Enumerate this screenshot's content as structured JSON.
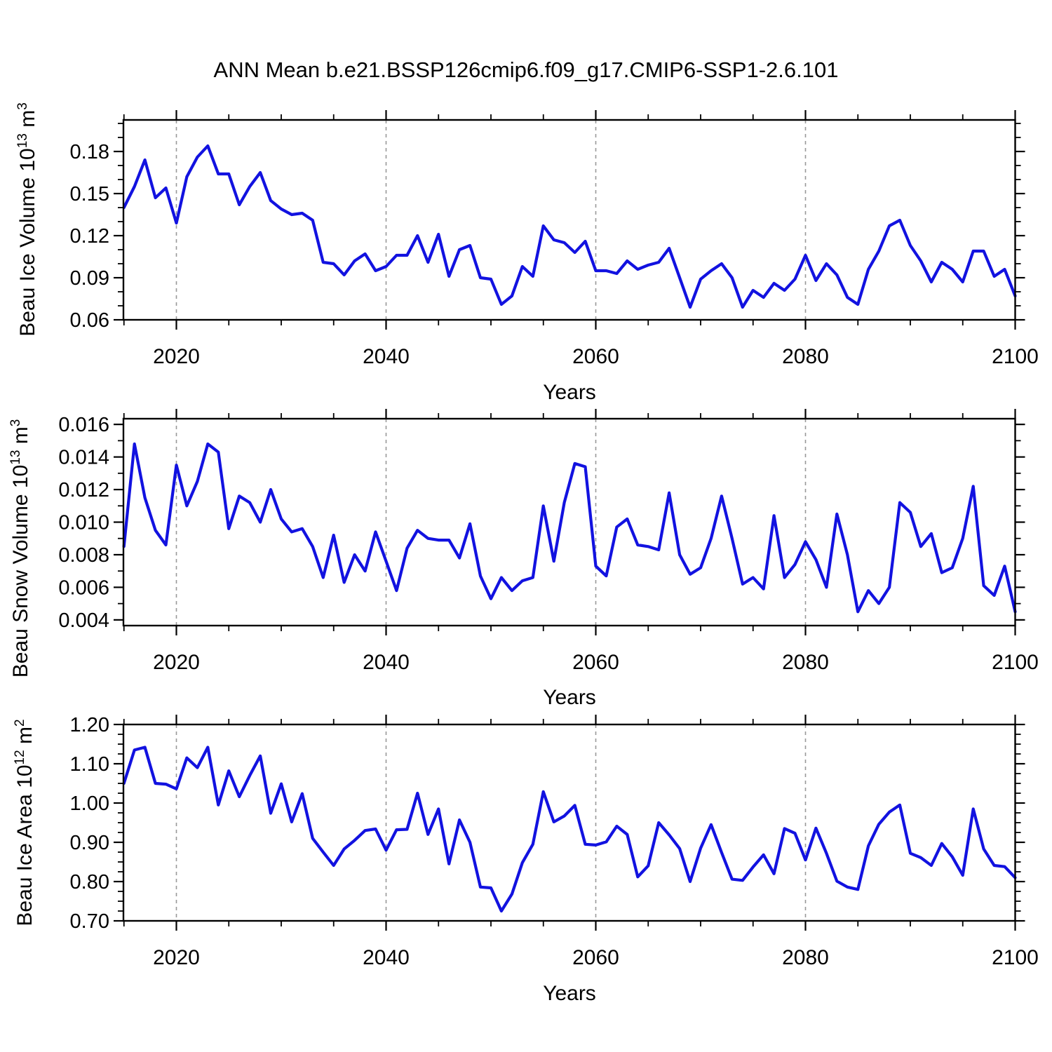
{
  "page": {
    "title": "ANN Mean b.e21.BSSP126cmip6.f09_g17.CMIP6-SSP1-2.6.101",
    "background": "#ffffff"
  },
  "style": {
    "line_color": "#1212E0",
    "axis_color": "#000000",
    "grid_color": "#999999",
    "text_color": "#000000"
  },
  "chart_data": [
    {
      "type": "line",
      "ylabel_text": "Beau Ice Volume 10^13 m^3",
      "ylabel_parts": [
        {
          "t": "Beau Ice Volume 10"
        },
        {
          "t": "13",
          "sup": true
        },
        {
          "t": " m"
        },
        {
          "t": "3",
          "sup": true
        }
      ],
      "xlabel": "Years",
      "x_start": 2015,
      "x_end": 2100,
      "x_step": 1,
      "xlim": [
        2014.95,
        2100
      ],
      "ylim": [
        0.06,
        0.2025
      ],
      "xticks": {
        "major": [
          2020,
          2040,
          2060,
          2080,
          2100
        ],
        "labels": [
          "2020",
          "2040",
          "2060",
          "2080",
          "2100"
        ],
        "minor_step": 5
      },
      "yticks": {
        "major": [
          0.06,
          0.09,
          0.12,
          0.15,
          0.18
        ],
        "labels": [
          "0.06",
          "0.09",
          "0.12",
          "0.15",
          "0.18"
        ],
        "minor_step": 0.01
      },
      "grid_years": [
        2020,
        2040,
        2060,
        2080
      ],
      "grid_on": "vertical-dashed",
      "legend": "none",
      "values": [
        0.14,
        0.155,
        0.174,
        0.147,
        0.154,
        0.129,
        0.162,
        0.176,
        0.184,
        0.164,
        0.164,
        0.142,
        0.155,
        0.165,
        0.145,
        0.139,
        0.135,
        0.136,
        0.131,
        0.101,
        0.1,
        0.092,
        0.102,
        0.107,
        0.095,
        0.098,
        0.106,
        0.106,
        0.12,
        0.101,
        0.121,
        0.091,
        0.11,
        0.113,
        0.09,
        0.089,
        0.071,
        0.077,
        0.098,
        0.091,
        0.127,
        0.117,
        0.115,
        0.108,
        0.116,
        0.095,
        0.095,
        0.093,
        0.102,
        0.096,
        0.099,
        0.101,
        0.111,
        0.09,
        0.069,
        0.089,
        0.095,
        0.1,
        0.09,
        0.069,
        0.081,
        0.076,
        0.086,
        0.081,
        0.089,
        0.106,
        0.088,
        0.1,
        0.092,
        0.076,
        0.071,
        0.096,
        0.109,
        0.127,
        0.131,
        0.113,
        0.102,
        0.087,
        0.101,
        0.096,
        0.087,
        0.109,
        0.109,
        0.091,
        0.096,
        0.077
      ]
    },
    {
      "type": "line",
      "ylabel_text": "Beau Snow Volume 10^13 m^3",
      "ylabel_parts": [
        {
          "t": "Beau Snow Volume 10"
        },
        {
          "t": "13",
          "sup": true
        },
        {
          "t": " m"
        },
        {
          "t": "3",
          "sup": true
        }
      ],
      "xlabel": "Years",
      "x_start": 2015,
      "x_end": 2100,
      "x_step": 1,
      "xlim": [
        2014.95,
        2100
      ],
      "ylim": [
        0.00365,
        0.01635
      ],
      "xticks": {
        "major": [
          2020,
          2040,
          2060,
          2080,
          2100
        ],
        "labels": [
          "2020",
          "2040",
          "2060",
          "2080",
          "2100"
        ],
        "minor_step": 5
      },
      "yticks": {
        "major": [
          0.004,
          0.006,
          0.008,
          0.01,
          0.012,
          0.014,
          0.016
        ],
        "labels": [
          "0.004",
          "0.006",
          "0.008",
          "0.010",
          "0.012",
          "0.014",
          "0.016"
        ],
        "minor_step": 0.001
      },
      "grid_years": [
        2020,
        2040,
        2060,
        2080
      ],
      "grid_on": "vertical-dashed",
      "legend": "none",
      "values": [
        0.0085,
        0.0148,
        0.0115,
        0.0095,
        0.0086,
        0.0135,
        0.011,
        0.0125,
        0.0148,
        0.0143,
        0.0096,
        0.0116,
        0.0112,
        0.01,
        0.012,
        0.0102,
        0.0094,
        0.0096,
        0.0085,
        0.0066,
        0.0092,
        0.0063,
        0.008,
        0.007,
        0.0094,
        0.0076,
        0.0058,
        0.0084,
        0.0095,
        0.009,
        0.0089,
        0.0089,
        0.0078,
        0.0099,
        0.0067,
        0.0053,
        0.0066,
        0.0058,
        0.0064,
        0.0066,
        0.011,
        0.0076,
        0.0112,
        0.0136,
        0.0134,
        0.0073,
        0.0067,
        0.0097,
        0.0102,
        0.0086,
        0.0085,
        0.0083,
        0.0118,
        0.008,
        0.0068,
        0.0072,
        0.009,
        0.0116,
        0.009,
        0.0062,
        0.0066,
        0.0059,
        0.0104,
        0.0066,
        0.0074,
        0.0088,
        0.0077,
        0.006,
        0.0105,
        0.008,
        0.0045,
        0.0058,
        0.005,
        0.006,
        0.0112,
        0.0106,
        0.0085,
        0.0093,
        0.0069,
        0.0072,
        0.009,
        0.0122,
        0.0061,
        0.0055,
        0.0073,
        0.0045
      ]
    },
    {
      "type": "line",
      "ylabel_text": "Beau Ice Area 10^12 m^2",
      "ylabel_parts": [
        {
          "t": "Beau Ice Area 10"
        },
        {
          "t": "12",
          "sup": true
        },
        {
          "t": " m"
        },
        {
          "t": "2",
          "sup": true
        }
      ],
      "xlabel": "Years",
      "x_start": 2015,
      "x_end": 2100,
      "x_step": 1,
      "xlim": [
        2014.95,
        2100
      ],
      "ylim": [
        0.7,
        1.2
      ],
      "xticks": {
        "major": [
          2020,
          2040,
          2060,
          2080,
          2100
        ],
        "labels": [
          "2020",
          "2040",
          "2060",
          "2080",
          "2100"
        ],
        "minor_step": 5
      },
      "yticks": {
        "major": [
          0.7,
          0.8,
          0.9,
          1.0,
          1.1,
          1.2
        ],
        "labels": [
          "0.70",
          "0.80",
          "0.90",
          "1.00",
          "1.10",
          "1.20"
        ],
        "minor_step": 0.025
      },
      "grid_years": [
        2020,
        2040,
        2060,
        2080
      ],
      "grid_on": "vertical-dashed",
      "legend": "none",
      "values": [
        1.05,
        1.135,
        1.142,
        1.05,
        1.048,
        1.036,
        1.115,
        1.09,
        1.142,
        0.995,
        1.082,
        1.016,
        1.07,
        1.12,
        0.974,
        1.049,
        0.952,
        1.024,
        0.91,
        0.875,
        0.841,
        0.883,
        0.905,
        0.93,
        0.934,
        0.88,
        0.932,
        0.933,
        1.025,
        0.92,
        0.985,
        0.845,
        0.957,
        0.9,
        0.786,
        0.784,
        0.725,
        0.768,
        0.848,
        0.895,
        1.029,
        0.952,
        0.967,
        0.994,
        0.895,
        0.893,
        0.901,
        0.941,
        0.92,
        0.812,
        0.84,
        0.95,
        0.919,
        0.884,
        0.8,
        0.885,
        0.945,
        0.874,
        0.806,
        0.803,
        0.837,
        0.868,
        0.82,
        0.935,
        0.923,
        0.855,
        0.936,
        0.872,
        0.801,
        0.786,
        0.78,
        0.891,
        0.946,
        0.977,
        0.995,
        0.872,
        0.861,
        0.841,
        0.897,
        0.863,
        0.816,
        0.985,
        0.883,
        0.841,
        0.838,
        0.81
      ]
    }
  ]
}
